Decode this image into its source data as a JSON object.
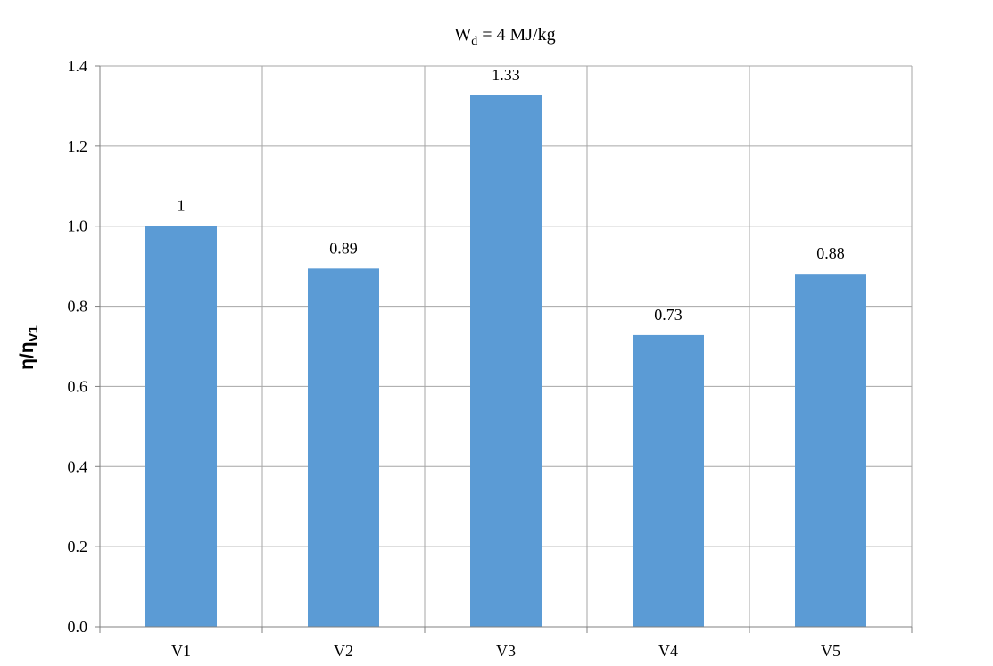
{
  "chart_data": {
    "type": "bar",
    "title": {
      "main": "W",
      "subscript": "d",
      "rest": " = 4 MJ/kg"
    },
    "ylabel": {
      "main": "η/η",
      "subscript": "V1"
    },
    "xlabel": "",
    "categories": [
      "V1",
      "V2",
      "V3",
      "V4",
      "V5"
    ],
    "values": [
      1.0,
      0.894,
      1.327,
      0.728,
      0.881
    ],
    "data_labels": [
      "1",
      "0.89",
      "1.33",
      "0.73",
      "0.88"
    ],
    "ylim": [
      0,
      1.4
    ],
    "yticks": [
      "0.0",
      "0.2",
      "0.4",
      "0.6",
      "0.8",
      "1.0",
      "1.2",
      "1.4"
    ],
    "grid": true,
    "legend": "none",
    "bar_color": "#5b9bd5",
    "grid_color": "#a6a6a6"
  }
}
